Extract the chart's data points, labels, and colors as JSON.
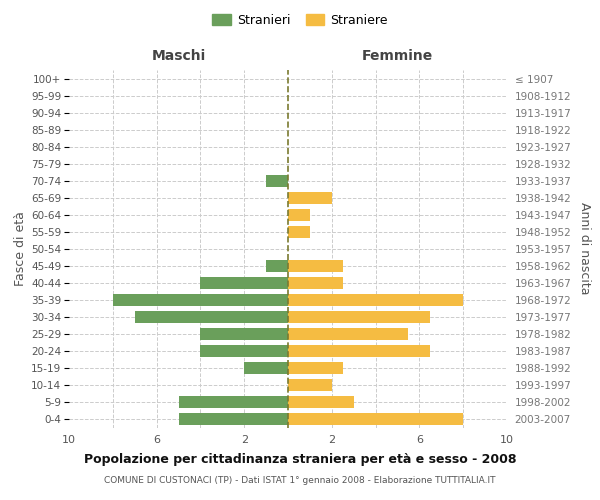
{
  "age_groups": [
    "100+",
    "95-99",
    "90-94",
    "85-89",
    "80-84",
    "75-79",
    "70-74",
    "65-69",
    "60-64",
    "55-59",
    "50-54",
    "45-49",
    "40-44",
    "35-39",
    "30-34",
    "25-29",
    "20-24",
    "15-19",
    "10-14",
    "5-9",
    "0-4"
  ],
  "birth_years": [
    "≤ 1907",
    "1908-1912",
    "1913-1917",
    "1918-1922",
    "1923-1927",
    "1928-1932",
    "1933-1937",
    "1938-1942",
    "1943-1947",
    "1948-1952",
    "1953-1957",
    "1958-1962",
    "1963-1967",
    "1968-1972",
    "1973-1977",
    "1978-1982",
    "1983-1987",
    "1988-1992",
    "1993-1997",
    "1998-2002",
    "2003-2007"
  ],
  "maschi": [
    0,
    0,
    0,
    0,
    0,
    0,
    1,
    0,
    0,
    0,
    0,
    1,
    4,
    8,
    7,
    4,
    4,
    2,
    0,
    5,
    5
  ],
  "femmine": [
    0,
    0,
    0,
    0,
    0,
    0,
    0,
    2,
    1,
    1,
    0,
    2.5,
    2.5,
    8,
    6.5,
    5.5,
    6.5,
    2.5,
    2,
    3,
    8
  ],
  "maschi_color": "#6a9f5b",
  "femmine_color": "#f5bc42",
  "center_line_color": "#7a7a30",
  "title": "Popolazione per cittadinanza straniera per età e sesso - 2008",
  "subtitle": "COMUNE DI CUSTONACI (TP) - Dati ISTAT 1° gennaio 2008 - Elaborazione TUTTITALIA.IT",
  "ylabel_left": "Fasce di età",
  "ylabel_right": "Anni di nascita",
  "header_left": "Maschi",
  "header_right": "Femmine",
  "legend_stranieri": "Stranieri",
  "legend_straniere": "Straniere",
  "xlim": 10,
  "background_color": "#ffffff",
  "grid_color": "#cccccc",
  "bar_height": 0.72
}
